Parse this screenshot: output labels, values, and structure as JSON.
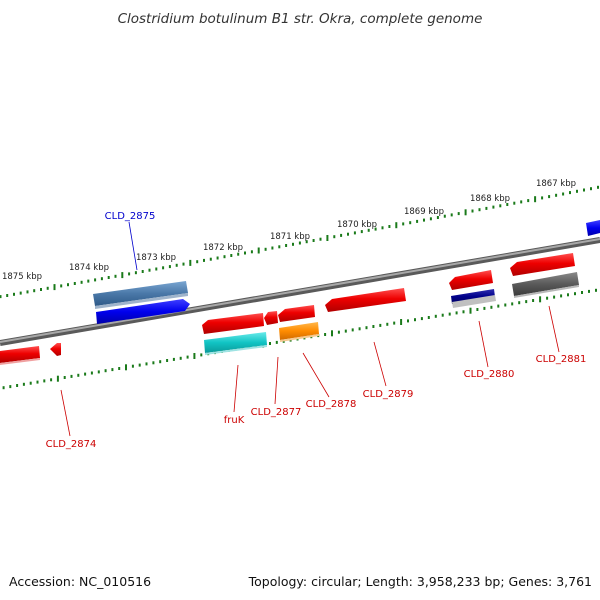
{
  "title": "Clostridium botulinum B1 str. Okra, complete genome",
  "footer": {
    "accession": "Accession: NC_010516",
    "summary": "Topology: circular; Length: 3,958,233 bp; Genes: 3,761"
  },
  "scale_labels": [
    "1875 kbp",
    "1874 kbp",
    "1873 kbp",
    "1872 kbp",
    "1871 kbp",
    "1870 kbp",
    "1869 kbp",
    "1868 kbp",
    "1867 kbp"
  ],
  "genes": [
    {
      "label": "CLD_2874",
      "strand": "reverse",
      "color": "#cc0000"
    },
    {
      "label": "CLD_2875",
      "strand": "forward",
      "color": "#0000cc"
    },
    {
      "label": "fruK",
      "strand": "reverse",
      "color": "#cc0000"
    },
    {
      "label": "CLD_2877",
      "strand": "reverse",
      "color": "#cc0000"
    },
    {
      "label": "CLD_2878",
      "strand": "reverse",
      "color": "#cc0000"
    },
    {
      "label": "CLD_2879",
      "strand": "reverse",
      "color": "#cc0000"
    },
    {
      "label": "CLD_2880",
      "strand": "reverse",
      "color": "#cc0000"
    },
    {
      "label": "CLD_2881",
      "strand": "reverse",
      "color": "#cc0000"
    }
  ],
  "colors": {
    "backbone": "#808080",
    "scale_ticks": "#1a7a1a",
    "gene_red": "#ee0000",
    "gene_blue": "#0000ee",
    "cog_steel": "#4a78a8",
    "cog_cyan": "#11c4c4",
    "cog_orange": "#ff8c00",
    "cog_navy": "#00008b",
    "cog_gray": "#5a5a5a",
    "label_red": "#cc0000",
    "label_blue": "#0000cc"
  }
}
